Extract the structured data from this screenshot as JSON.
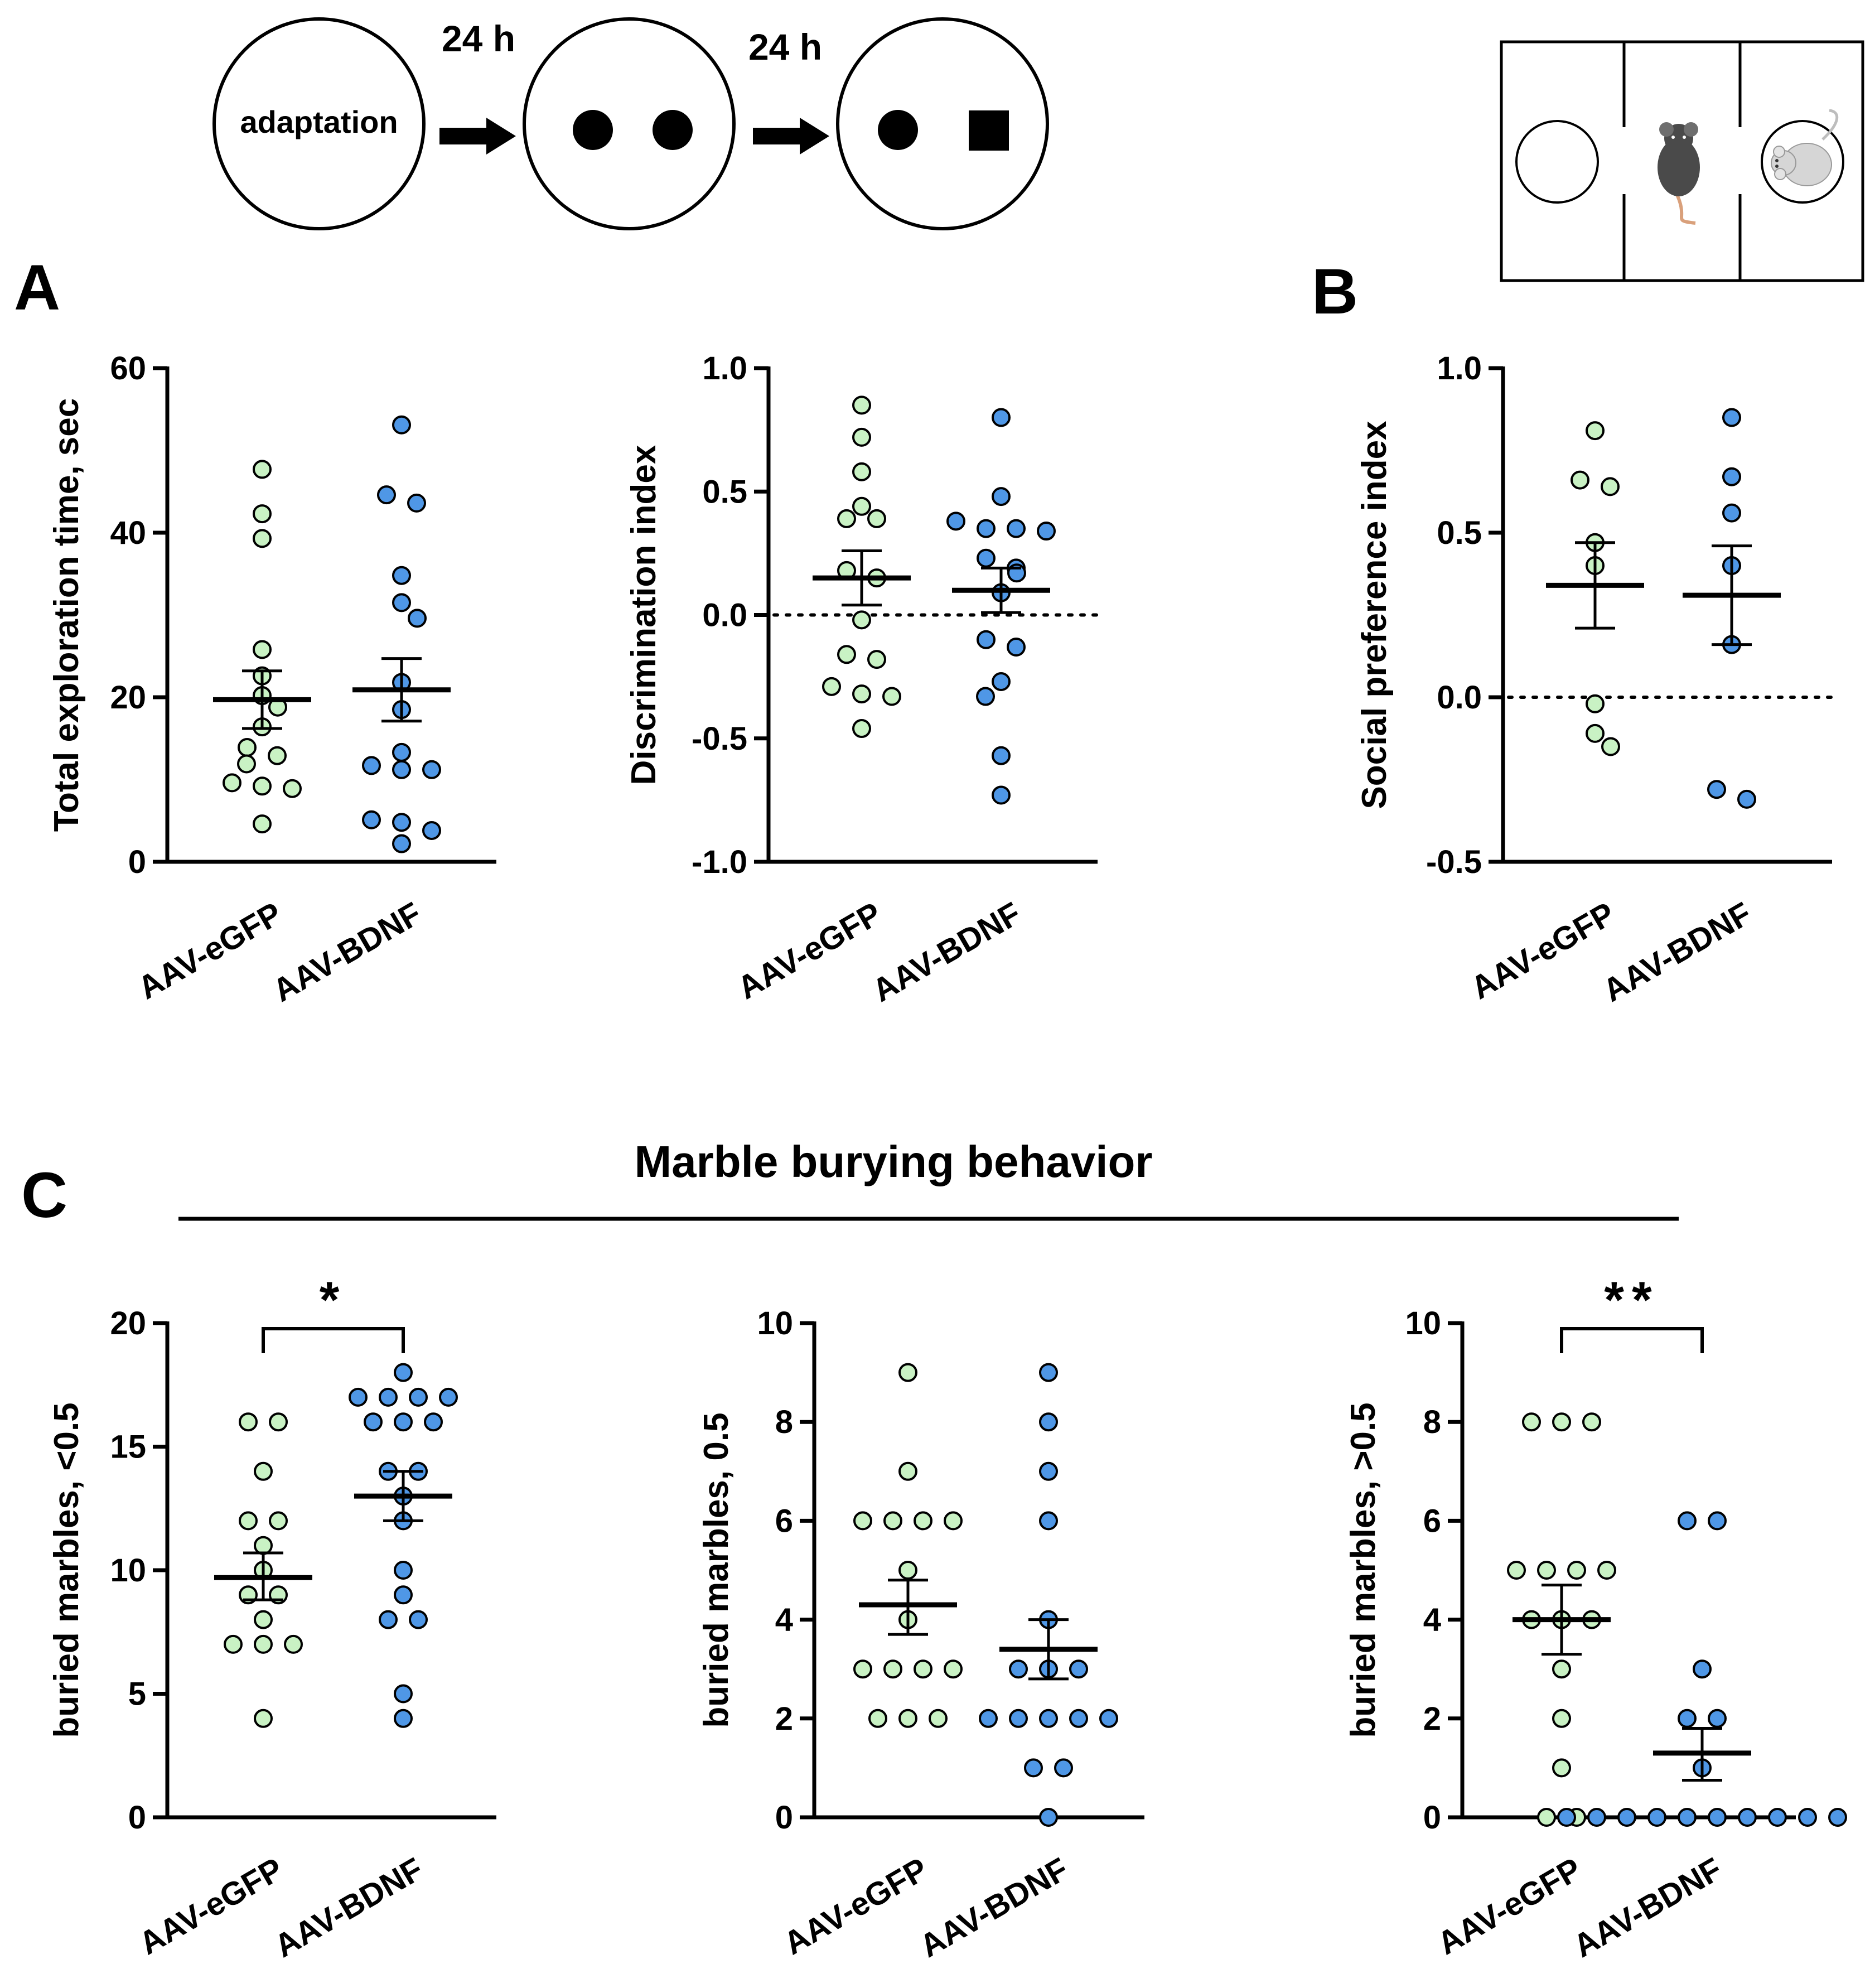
{
  "colors": {
    "egfp": "#c9f2c4",
    "bdnf": "#4f97e6",
    "ink": "#000000"
  },
  "schematic": {
    "circle1_label": "adaptation",
    "arrow1_label": "24 h",
    "arrow2_label": "24 h",
    "icons": [
      "mouse-icon",
      "caged-mouse-icon"
    ]
  },
  "panels": {
    "A": {
      "letter": "A"
    },
    "B": {
      "letter": "B"
    },
    "C": {
      "letter": "C",
      "title": "Marble burying behavior"
    }
  },
  "chart_data": [
    {
      "id": "a1",
      "type": "scatter",
      "panel": "A",
      "ylabel": "Total exploration time, sec",
      "ylim": [
        0,
        60
      ],
      "ticks": [
        0,
        20,
        40,
        60
      ],
      "ticklabels": [
        "0",
        "20",
        "40",
        "60"
      ],
      "reference_line": null,
      "significance": null,
      "groups": [
        {
          "name": "AAV-eGFP",
          "color": "#c9f2c4",
          "mean": 19.7,
          "sem_low": 16.2,
          "sem_high": 23.2,
          "points": [
            47.7,
            42.3,
            39.3,
            25.8,
            22.6,
            20.2,
            18.8,
            16.4,
            13.9,
            12.9,
            11.9,
            9.6,
            9.2,
            8.9,
            4.6
          ]
        },
        {
          "name": "AAV-BDNF",
          "color": "#4f97e6",
          "mean": 20.9,
          "sem_low": 17.1,
          "sem_high": 24.7,
          "points": [
            53.1,
            44.6,
            43.6,
            34.8,
            31.5,
            29.6,
            21.8,
            18.5,
            13.3,
            11.7,
            11.2,
            11.2,
            5.1,
            4.8,
            3.8,
            2.2
          ]
        }
      ]
    },
    {
      "id": "a2",
      "type": "scatter",
      "panel": "A",
      "ylabel": "Discrimination index",
      "ylim": [
        -1.0,
        1.0
      ],
      "ticks": [
        -1.0,
        -0.5,
        0.0,
        0.5,
        1.0
      ],
      "ticklabels": [
        "-1.0",
        "-0.5",
        "0.0",
        "0.5",
        "1.0"
      ],
      "reference_line": 0.0,
      "significance": null,
      "groups": [
        {
          "name": "AAV-eGFP",
          "color": "#c9f2c4",
          "mean": 0.15,
          "sem_low": 0.04,
          "sem_high": 0.26,
          "points": [
            0.85,
            0.72,
            0.58,
            0.44,
            0.39,
            0.39,
            0.18,
            0.15,
            -0.02,
            -0.16,
            -0.18,
            -0.29,
            -0.32,
            -0.33,
            -0.46
          ]
        },
        {
          "name": "AAV-BDNF",
          "color": "#4f97e6",
          "mean": 0.1,
          "sem_low": 0.01,
          "sem_high": 0.19,
          "points": [
            0.8,
            0.48,
            0.38,
            0.35,
            0.35,
            0.34,
            0.23,
            0.19,
            0.17,
            0.09,
            -0.1,
            -0.13,
            -0.27,
            -0.33,
            -0.57,
            -0.73
          ]
        }
      ]
    },
    {
      "id": "b1",
      "type": "scatter",
      "panel": "B",
      "ylabel": "Social preference index",
      "ylim": [
        -0.5,
        1.0
      ],
      "ticks": [
        -0.5,
        0.0,
        0.5,
        1.0
      ],
      "ticklabels": [
        "-0.5",
        "0.0",
        "0.5",
        "1.0"
      ],
      "reference_line": 0.0,
      "significance": null,
      "groups": [
        {
          "name": "AAV-eGFP",
          "color": "#c9f2c4",
          "mean": 0.34,
          "sem_low": 0.21,
          "sem_high": 0.47,
          "points": [
            0.81,
            0.66,
            0.64,
            0.47,
            0.4,
            -0.02,
            -0.11,
            -0.15
          ]
        },
        {
          "name": "AAV-BDNF",
          "color": "#4f97e6",
          "mean": 0.31,
          "sem_low": 0.16,
          "sem_high": 0.46,
          "points": [
            0.85,
            0.67,
            0.56,
            0.4,
            0.16,
            -0.28,
            -0.31
          ]
        }
      ]
    },
    {
      "id": "c1",
      "type": "scatter",
      "panel": "C",
      "ylabel": "buried marbles,  <0.5",
      "ylim": [
        0,
        20
      ],
      "ticks": [
        0,
        5,
        10,
        15,
        20
      ],
      "ticklabels": [
        "0",
        "5",
        "10",
        "15",
        "20"
      ],
      "reference_line": null,
      "significance": "*",
      "groups": [
        {
          "name": "AAV-eGFP",
          "color": "#c9f2c4",
          "mean": 9.7,
          "sem_low": 8.8,
          "sem_high": 10.7,
          "points": [
            16,
            16,
            14,
            12,
            12,
            11,
            10,
            9,
            9,
            8,
            7,
            7,
            7,
            4
          ]
        },
        {
          "name": "AAV-BDNF",
          "color": "#4f97e6",
          "mean": 13.0,
          "sem_low": 12.0,
          "sem_high": 14.0,
          "points": [
            18,
            17,
            17,
            17,
            17,
            16,
            16,
            16,
            14,
            14,
            13,
            12,
            10,
            9,
            8,
            8,
            5,
            4
          ]
        }
      ]
    },
    {
      "id": "c2",
      "type": "scatter",
      "panel": "C",
      "ylabel": "buried marbles,  0.5",
      "ylim": [
        0,
        10
      ],
      "ticks": [
        0,
        2,
        4,
        6,
        8,
        10
      ],
      "ticklabels": [
        "0",
        "2",
        "4",
        "6",
        "8",
        "10"
      ],
      "reference_line": null,
      "significance": null,
      "groups": [
        {
          "name": "AAV-eGFP",
          "color": "#c9f2c4",
          "mean": 4.3,
          "sem_low": 3.7,
          "sem_high": 4.8,
          "points": [
            9,
            7,
            6,
            6,
            6,
            6,
            5,
            4,
            3,
            3,
            3,
            3,
            2,
            2,
            2
          ]
        },
        {
          "name": "AAV-BDNF",
          "color": "#4f97e6",
          "mean": 3.4,
          "sem_low": 2.8,
          "sem_high": 4.0,
          "points": [
            9,
            8,
            7,
            6,
            4,
            3,
            3,
            3,
            2,
            2,
            2,
            2,
            2,
            1,
            1,
            0
          ]
        }
      ]
    },
    {
      "id": "c3",
      "type": "scatter",
      "panel": "C",
      "ylabel": "buried marbles,  >0.5",
      "ylim": [
        0,
        10
      ],
      "ticks": [
        0,
        2,
        4,
        6,
        8,
        10
      ],
      "ticklabels": [
        "0",
        "2",
        "4",
        "6",
        "8",
        "10"
      ],
      "reference_line": null,
      "significance": "**",
      "groups": [
        {
          "name": "AAV-eGFP",
          "color": "#c9f2c4",
          "mean": 4.0,
          "sem_low": 3.3,
          "sem_high": 4.7,
          "points": [
            8,
            8,
            8,
            5,
            5,
            5,
            5,
            4,
            4,
            4,
            3,
            2,
            1,
            0,
            0
          ]
        },
        {
          "name": "AAV-BDNF",
          "color": "#4f97e6",
          "mean": 1.3,
          "sem_low": 0.75,
          "sem_high": 1.8,
          "points": [
            6,
            6,
            3,
            2,
            2,
            1,
            0,
            0,
            0,
            0,
            0,
            0,
            0,
            0,
            0,
            0
          ]
        }
      ]
    }
  ]
}
